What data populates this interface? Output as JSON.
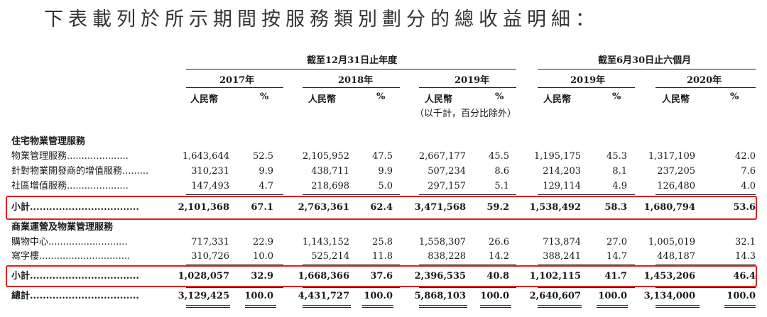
{
  "title": "下表載列於所示期間按服務類別劃分的總收益明細：",
  "header": {
    "annual_group": "截至12月31日止年度",
    "interim_group": "截至6月30日止六個月",
    "years": [
      "2017年",
      "2018年",
      "2019年",
      "2019年",
      "2020年"
    ],
    "currency": "人民幣",
    "percent": "%",
    "note": "（以千計，百分比除外）"
  },
  "sections": [
    {
      "title": "住宅物業管理服務",
      "rows": [
        {
          "label": "物業管理服務.....................",
          "values": [
            "1,643,644",
            "52.5",
            "2,105,952",
            "47.5",
            "2,667,177",
            "45.5",
            "1,195,175",
            "45.3",
            "1,317,109",
            "42.0"
          ]
        },
        {
          "label": "針對物業開發商的增值服務.........",
          "values": [
            "310,231",
            "9.9",
            "438,711",
            "9.9",
            "507,234",
            "8.6",
            "214,203",
            "8.1",
            "237,205",
            "7.6"
          ]
        },
        {
          "label": "社區增值服務.....................",
          "values": [
            "147,493",
            "4.7",
            "218,698",
            "5.0",
            "297,157",
            "5.1",
            "129,114",
            "4.9",
            "126,480",
            "4.0"
          ]
        }
      ],
      "subtotal": {
        "label": "小計..................................",
        "values": [
          "2,101,368",
          "67.1",
          "2,763,361",
          "62.4",
          "3,471,568",
          "59.2",
          "1,538,492",
          "58.3",
          "1,680,794",
          "53.6"
        ]
      }
    },
    {
      "title": "商業運營及物業管理服務",
      "rows": [
        {
          "label": "購物中心...........................",
          "values": [
            "717,331",
            "22.9",
            "1,143,152",
            "25.8",
            "1,558,307",
            "26.6",
            "713,874",
            "27.0",
            "1,005,019",
            "32.1"
          ]
        },
        {
          "label": "寫字樓...............................",
          "values": [
            "310,726",
            "10.0",
            "525,214",
            "11.8",
            "838,228",
            "14.2",
            "388,241",
            "14.7",
            "448,187",
            "14.3"
          ]
        }
      ],
      "subtotal": {
        "label": "小計..................................",
        "values": [
          "1,028,057",
          "32.9",
          "1,668,366",
          "37.6",
          "2,396,535",
          "40.8",
          "1,102,115",
          "41.7",
          "1,453,206",
          "46.4"
        ]
      }
    }
  ],
  "total": {
    "label": "總計..................................",
    "values": [
      "3,129,425",
      "100.0",
      "4,431,727",
      "100.0",
      "5,868,103",
      "100.0",
      "2,640,607",
      "100.0",
      "3,134,000",
      "100.0"
    ]
  },
  "colors": {
    "highlight_box": "#e0201e"
  }
}
